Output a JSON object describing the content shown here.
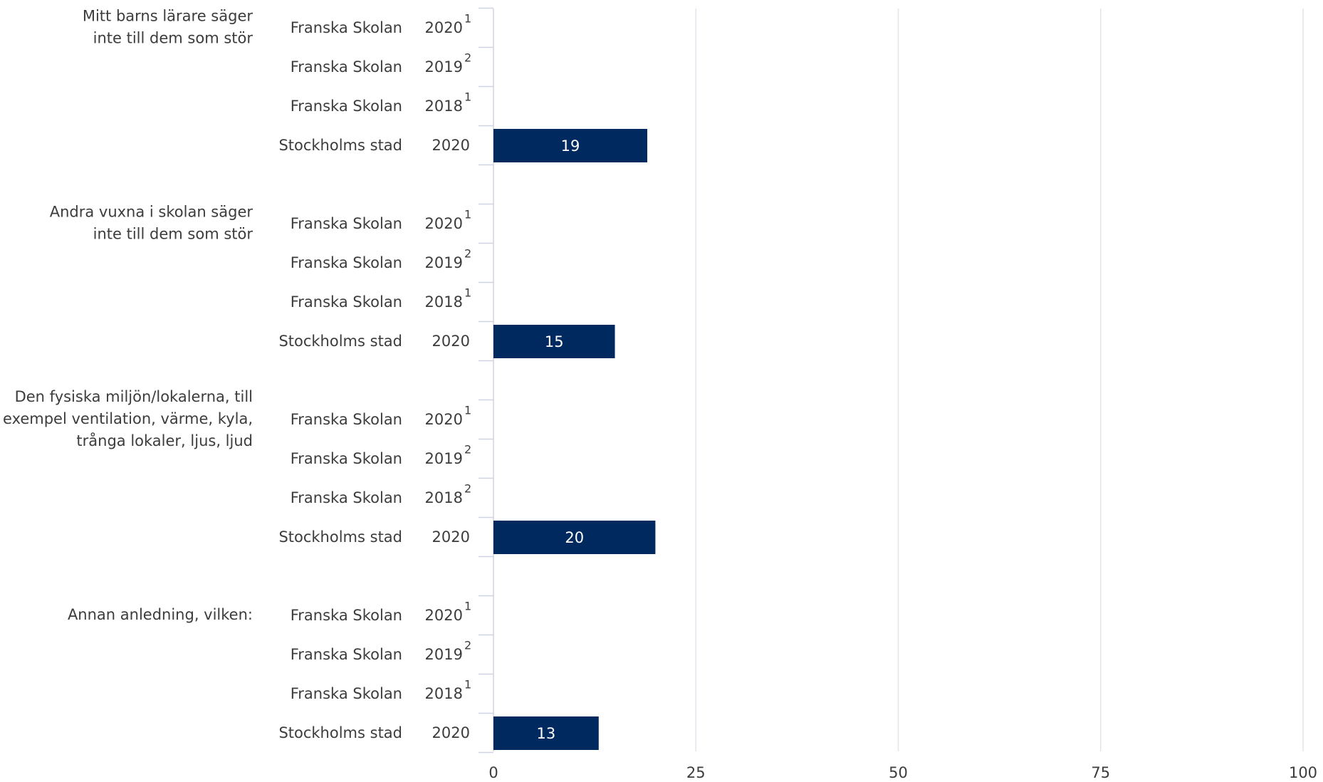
{
  "chart_data": {
    "type": "bar",
    "orientation": "horizontal",
    "color": "#002a5f",
    "xlim": [
      0,
      100
    ],
    "xticks": [
      0,
      25,
      50,
      75,
      100
    ],
    "grid": true,
    "groups": [
      {
        "label": [
          "Mitt barns lärare säger",
          "inte till dem som stör"
        ],
        "rows": [
          {
            "name": "Franska Skolan",
            "year": "2020",
            "note": "1",
            "value": null
          },
          {
            "name": "Franska Skolan",
            "year": "2019",
            "note": "2",
            "value": null
          },
          {
            "name": "Franska Skolan",
            "year": "2018",
            "note": "1",
            "value": null
          },
          {
            "name": "Stockholms stad",
            "year": "2020",
            "value": 19
          }
        ]
      },
      {
        "label": [
          "Andra vuxna i skolan säger",
          "inte till dem som stör"
        ],
        "rows": [
          {
            "name": "Franska Skolan",
            "year": "2020",
            "note": "1",
            "value": null
          },
          {
            "name": "Franska Skolan",
            "year": "2019",
            "note": "2",
            "value": null
          },
          {
            "name": "Franska Skolan",
            "year": "2018",
            "note": "1",
            "value": null
          },
          {
            "name": "Stockholms stad",
            "year": "2020",
            "value": 15
          }
        ]
      },
      {
        "label": [
          "Den fysiska miljön/lokalerna, till",
          "exempel ventilation, värme, kyla,",
          "trånga lokaler, ljus, ljud"
        ],
        "rows": [
          {
            "name": "Franska Skolan",
            "year": "2020",
            "note": "1",
            "value": null
          },
          {
            "name": "Franska Skolan",
            "year": "2019",
            "note": "2",
            "value": null
          },
          {
            "name": "Franska Skolan",
            "year": "2018",
            "note": "2",
            "value": null
          },
          {
            "name": "Stockholms stad",
            "year": "2020",
            "value": 20
          }
        ]
      },
      {
        "label": [
          "Annan anledning, vilken:"
        ],
        "rows": [
          {
            "name": "Franska Skolan",
            "year": "2020",
            "note": "1",
            "value": null
          },
          {
            "name": "Franska Skolan",
            "year": "2019",
            "note": "2",
            "value": null
          },
          {
            "name": "Franska Skolan",
            "year": "2018",
            "note": "1",
            "value": null
          },
          {
            "name": "Stockholms stad",
            "year": "2020",
            "value": 13
          }
        ]
      }
    ]
  }
}
